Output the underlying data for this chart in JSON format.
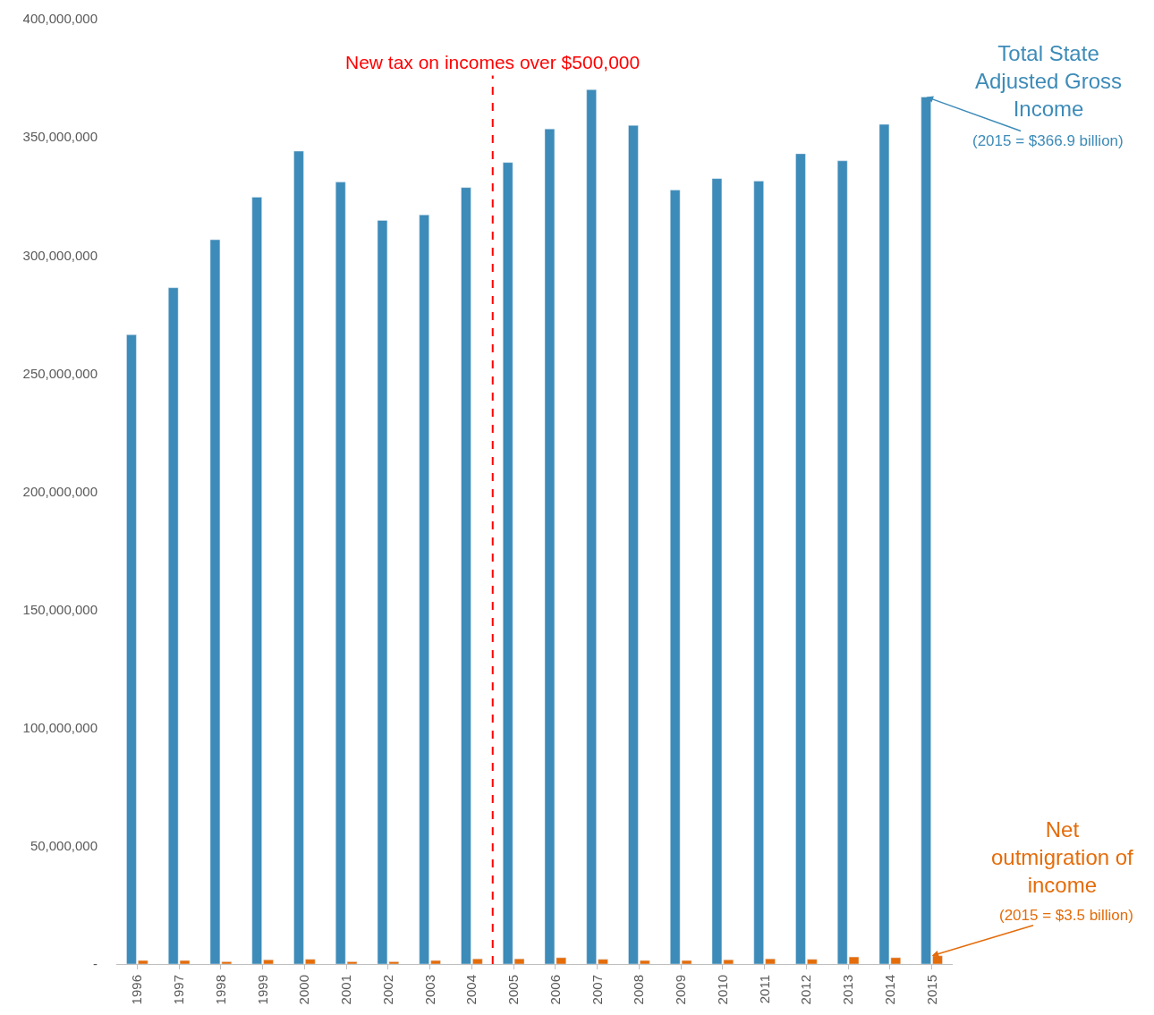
{
  "chart_data": {
    "type": "bar",
    "x": [
      1996,
      1997,
      1998,
      1999,
      2000,
      2001,
      2002,
      2003,
      2004,
      2005,
      2006,
      2007,
      2008,
      2009,
      2010,
      2011,
      2012,
      2013,
      2014,
      2015
    ],
    "series": [
      {
        "name": "Total State Adjusted Gross Income",
        "color": "#3d8bb8",
        "values": [
          266300000,
          286200000,
          306500000,
          324500000,
          344000000,
          330900000,
          314700000,
          317000000,
          328600000,
          339200000,
          353400000,
          370000000,
          354900000,
          327500000,
          332400000,
          331300000,
          342900000,
          339900000,
          355300000,
          366900000
        ]
      },
      {
        "name": "Net outmigration of income",
        "color": "#e46c0a",
        "values": [
          1500000,
          1500000,
          1000000,
          1800000,
          2000000,
          1000000,
          1000000,
          1500000,
          2200000,
          2200000,
          2700000,
          2000000,
          1500000,
          1500000,
          1800000,
          2200000,
          2000000,
          3000000,
          2700000,
          3500000
        ]
      }
    ],
    "xlim": [
      1995.5,
      2015.5
    ],
    "xticks": [
      1996,
      1997,
      1998,
      1999,
      2000,
      2001,
      2002,
      2003,
      2004,
      2005,
      2006,
      2007,
      2008,
      2009,
      2010,
      2011,
      2012,
      2013,
      2014,
      2015
    ],
    "ylim": [
      0,
      400000000
    ],
    "yticks": [
      {
        "value": 0,
        "label": "-"
      },
      {
        "value": 50000000,
        "label": "50,000,000"
      },
      {
        "value": 100000000,
        "label": "100,000,000"
      },
      {
        "value": 150000000,
        "label": "150,000,000"
      },
      {
        "value": 200000000,
        "label": "200,000,000"
      },
      {
        "value": 250000000,
        "label": "250,000,000"
      },
      {
        "value": 300000000,
        "label": "300,000,000"
      },
      {
        "value": 350000000,
        "label": "350,000,000"
      },
      {
        "value": 400000000,
        "label": "400,000,000"
      }
    ],
    "ref_lines": [
      {
        "axis": "x",
        "value": 2004.5,
        "label": "New tax on incomes over $500,000",
        "color": "#ff0000",
        "line_style": "dashed"
      }
    ],
    "annotations": [
      {
        "text": "(2015 = $366.9 billion)",
        "x": 2015,
        "y": 366900000
      },
      {
        "text": "(2015 = $3.5 billion)",
        "x": 2015,
        "y": 3500000
      }
    ],
    "legend": false
  }
}
